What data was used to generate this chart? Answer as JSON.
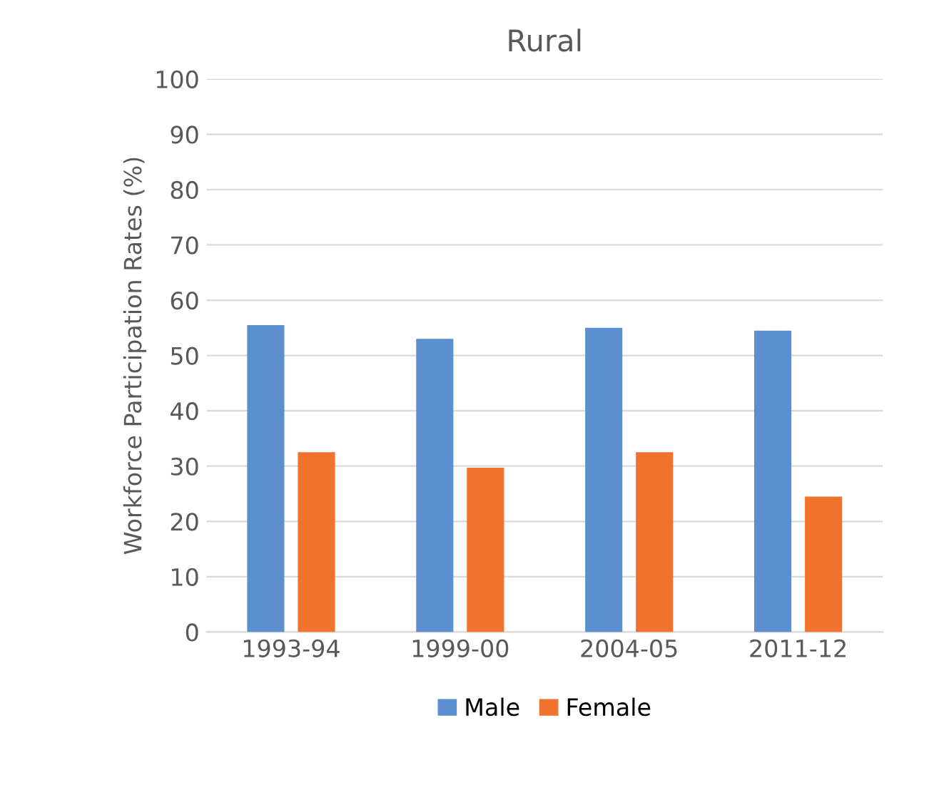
{
  "chart_data": {
    "type": "bar",
    "title": "Rural",
    "ylabel": "Workforce Participation Rates (%)",
    "categories": [
      "1993-94",
      "1999-00",
      "2004-05",
      "2011-12"
    ],
    "series": [
      {
        "name": "Male",
        "color": "#5b8fd0",
        "values": [
          55.5,
          53,
          55,
          54.5
        ]
      },
      {
        "name": "Female",
        "color": "#f0722c",
        "values": [
          32.5,
          29.7,
          32.5,
          24.5
        ]
      }
    ],
    "ylim": [
      0,
      100
    ],
    "yticks": [
      0,
      10,
      20,
      30,
      40,
      50,
      60,
      70,
      80,
      90,
      100
    ],
    "grid": "y",
    "legend": "bottom"
  }
}
